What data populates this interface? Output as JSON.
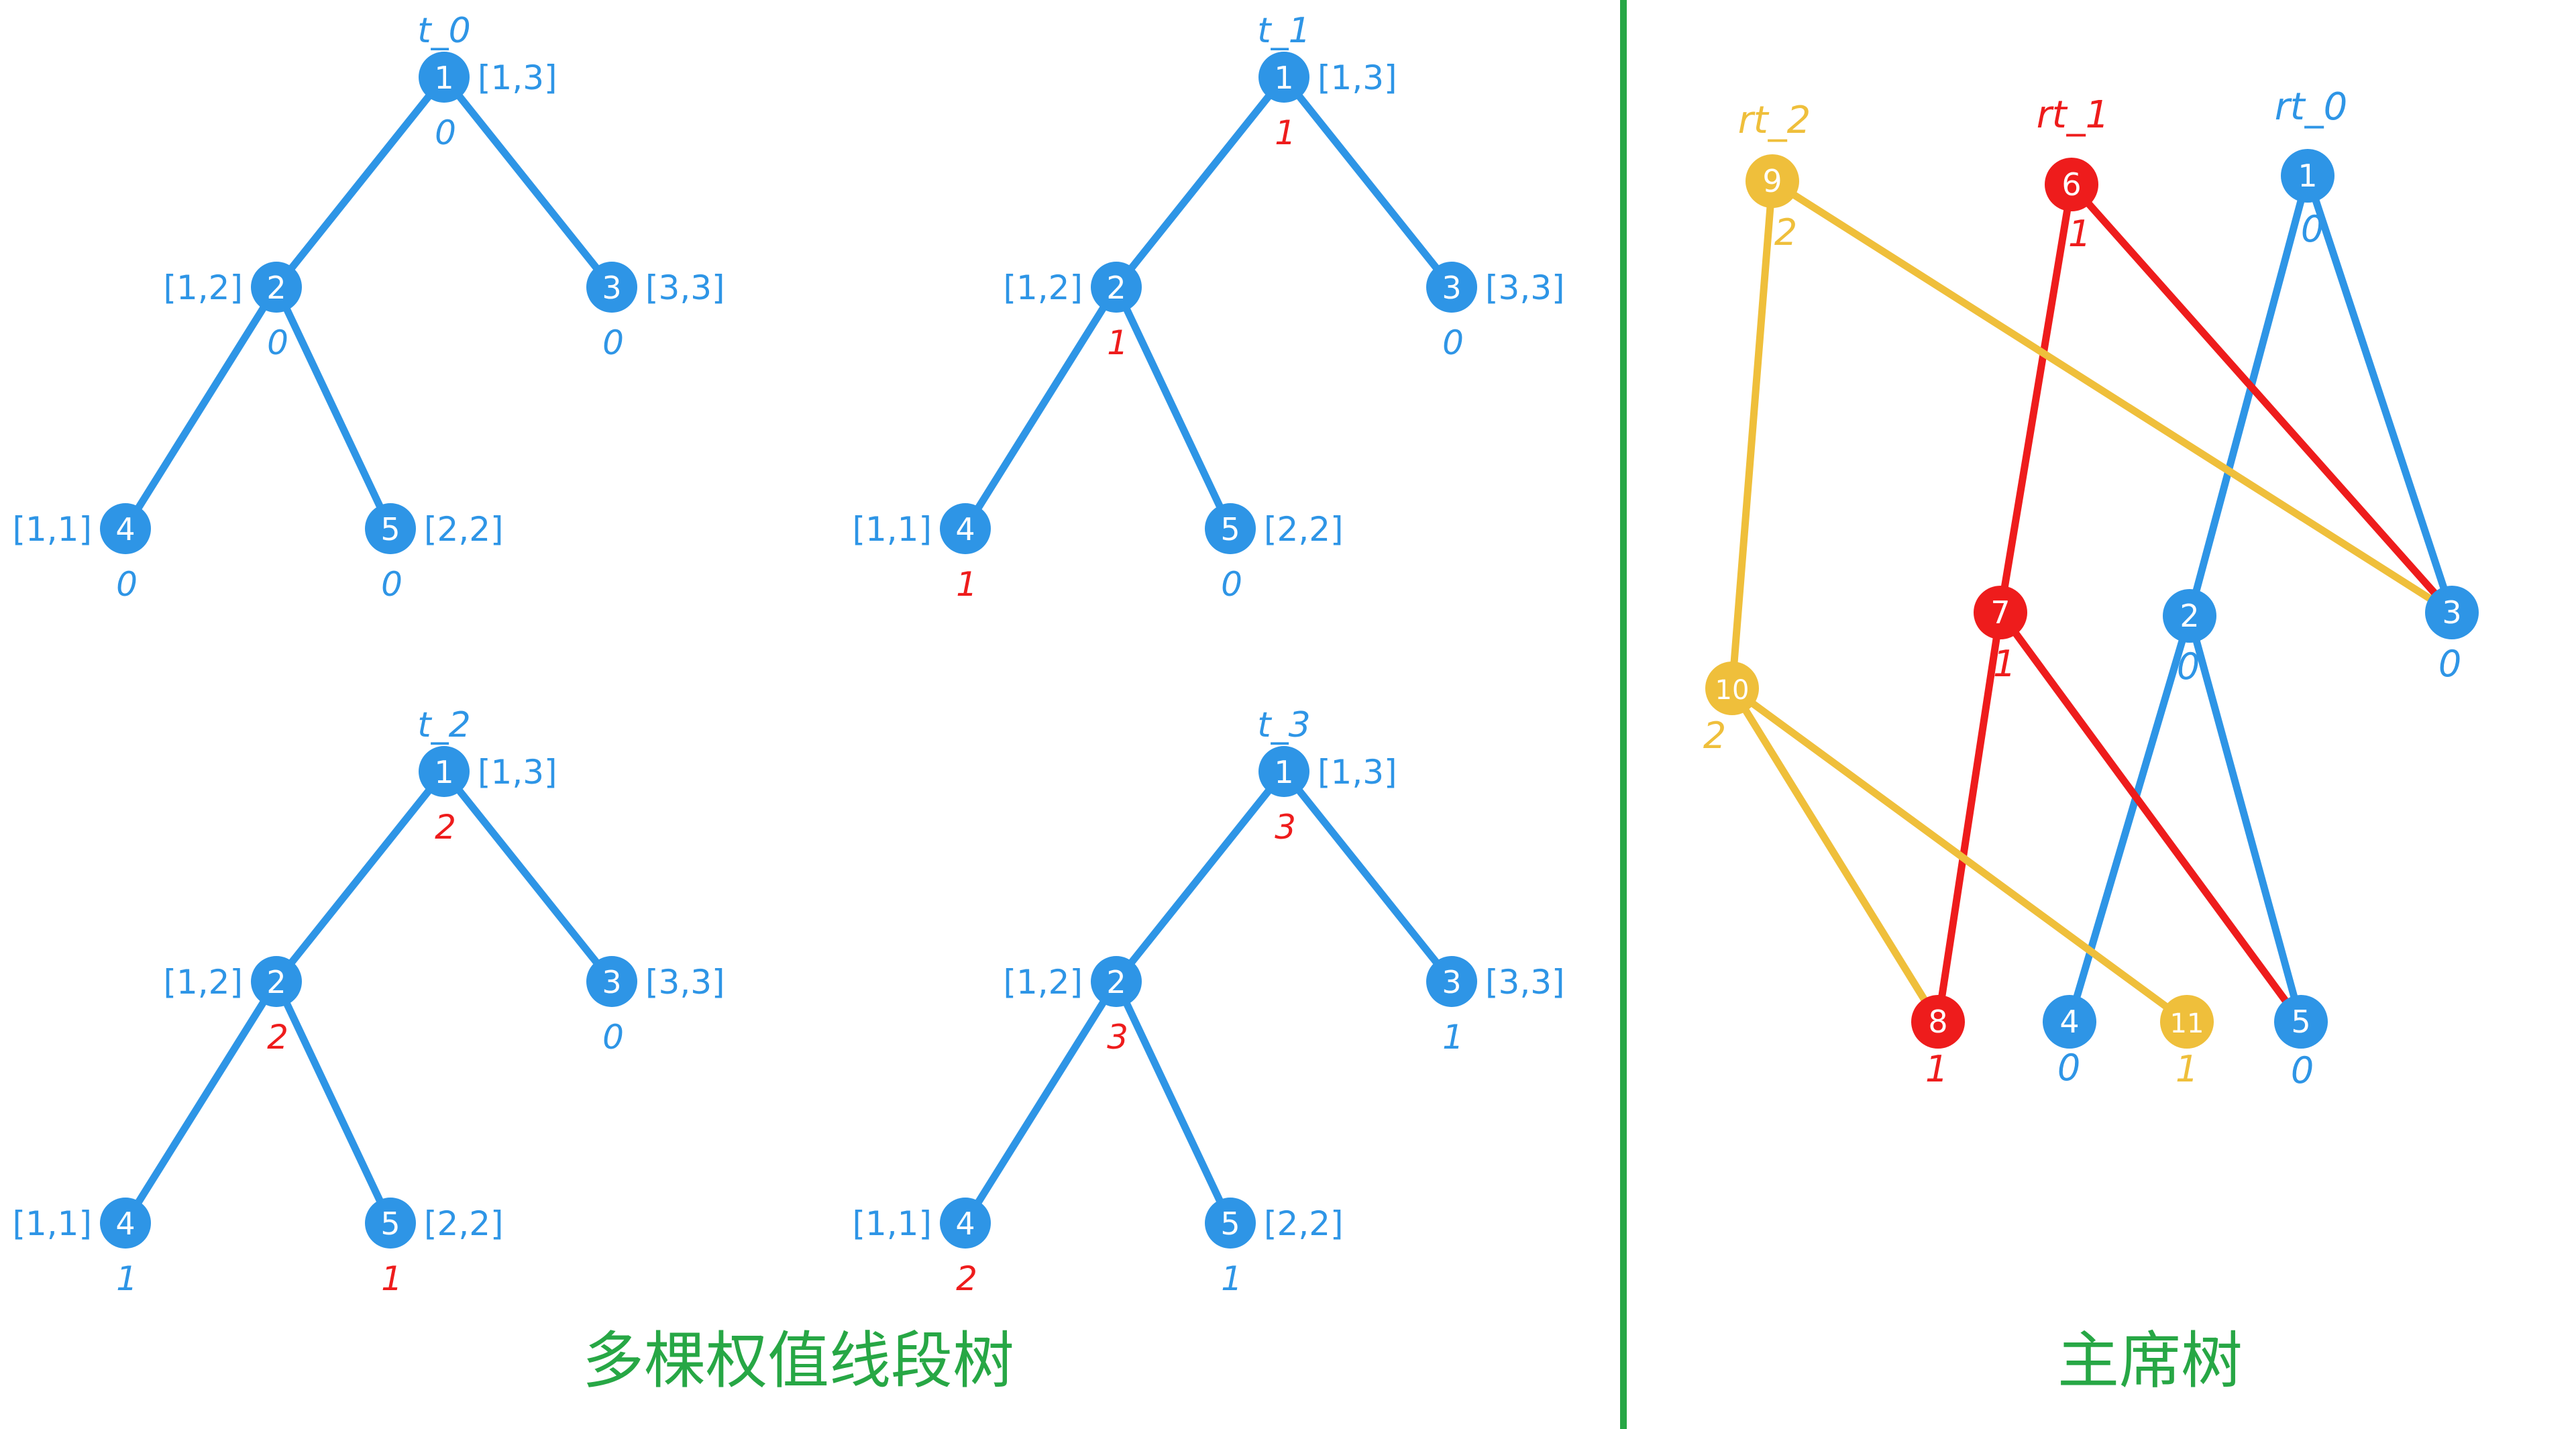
{
  "colors": {
    "blue": "#2E95E6",
    "red": "#EE1C1C",
    "yellow": "#EFBF3B",
    "green": "#27A745",
    "node_text": "#ffffff"
  },
  "left_panel": {
    "caption": "多棵权值线段树",
    "ranges": {
      "n1": "[1,3]",
      "n2": "[1,2]",
      "n3": "[3,3]",
      "n4": "[1,1]",
      "n5": "[2,2]"
    },
    "trees": [
      {
        "label": "t_0",
        "values": {
          "n1": "0",
          "n2": "0",
          "n3": "0",
          "n4": "0",
          "n5": "0"
        },
        "highlight": []
      },
      {
        "label": "t_1",
        "values": {
          "n1": "1",
          "n2": "1",
          "n3": "0",
          "n4": "1",
          "n5": "0"
        },
        "highlight": [
          "n1",
          "n2",
          "n4"
        ]
      },
      {
        "label": "t_2",
        "values": {
          "n1": "2",
          "n2": "2",
          "n3": "0",
          "n4": "1",
          "n5": "1"
        },
        "highlight": [
          "n1",
          "n2",
          "n5"
        ]
      },
      {
        "label": "t_3",
        "values": {
          "n1": "3",
          "n2": "3",
          "n3": "1",
          "n4": "2",
          "n5": "1"
        },
        "highlight": [
          "n1",
          "n2",
          "n4"
        ]
      }
    ]
  },
  "right_panel": {
    "caption": "主席树",
    "roots": [
      {
        "label": "rt_2",
        "color": "yellow"
      },
      {
        "label": "rt_1",
        "color": "red"
      },
      {
        "label": "rt_0",
        "color": "blue"
      }
    ],
    "nodes": [
      {
        "id": "1",
        "value": "0",
        "color": "blue"
      },
      {
        "id": "2",
        "value": "0",
        "color": "blue"
      },
      {
        "id": "3",
        "value": "0",
        "color": "blue"
      },
      {
        "id": "4",
        "value": "0",
        "color": "blue"
      },
      {
        "id": "5",
        "value": "0",
        "color": "blue"
      },
      {
        "id": "6",
        "value": "1",
        "color": "red"
      },
      {
        "id": "7",
        "value": "1",
        "color": "red"
      },
      {
        "id": "8",
        "value": "1",
        "color": "red"
      },
      {
        "id": "9",
        "value": "2",
        "color": "yellow"
      },
      {
        "id": "10",
        "value": "2",
        "color": "yellow"
      },
      {
        "id": "11",
        "value": "1",
        "color": "yellow"
      }
    ],
    "edges": [
      {
        "from": "1",
        "to": "2",
        "color": "blue"
      },
      {
        "from": "1",
        "to": "3",
        "color": "blue"
      },
      {
        "from": "2",
        "to": "4",
        "color": "blue"
      },
      {
        "from": "2",
        "to": "5",
        "color": "blue"
      },
      {
        "from": "6",
        "to": "7",
        "color": "red"
      },
      {
        "from": "6",
        "to": "3",
        "color": "red"
      },
      {
        "from": "7",
        "to": "8",
        "color": "red"
      },
      {
        "from": "7",
        "to": "5",
        "color": "red"
      },
      {
        "from": "9",
        "to": "10",
        "color": "yellow"
      },
      {
        "from": "9",
        "to": "3",
        "color": "yellow"
      },
      {
        "from": "10",
        "to": "8",
        "color": "yellow"
      },
      {
        "from": "10",
        "to": "11",
        "color": "yellow"
      }
    ]
  }
}
